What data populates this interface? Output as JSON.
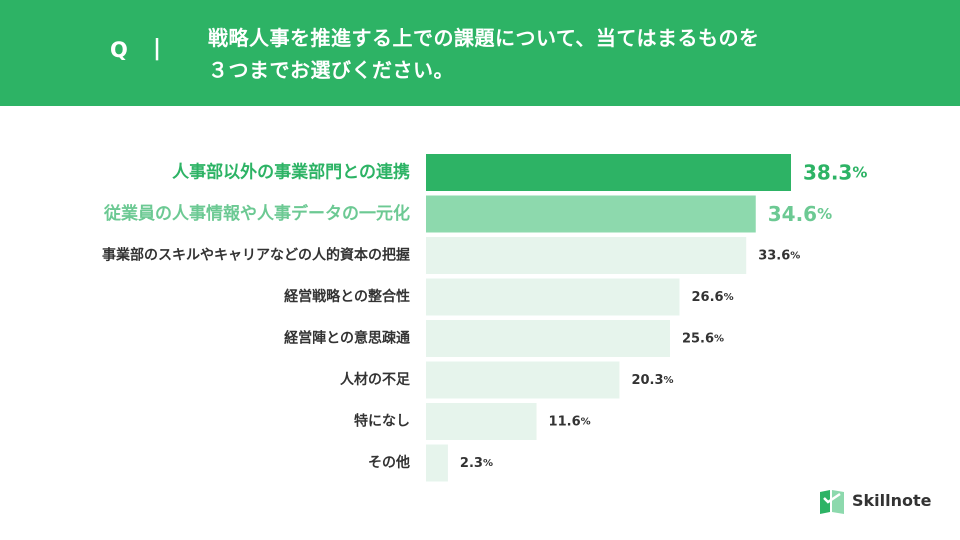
{
  "question": {
    "marker": "Q",
    "separator": "|",
    "line1": "戦略人事を推進する上での課題について、当てはまるものを",
    "line2": "３つまでお選びください。"
  },
  "chart_data": {
    "type": "bar",
    "orientation": "horizontal",
    "categories": [
      "人事部以外の事業部門との連携",
      "従業員の人事情報や人事データの一元化",
      "事業部のスキルやキャリアなどの人的資本の把握",
      "経営戦略との整合性",
      "経営陣との意思疎通",
      "人材の不足",
      "特になし",
      "その他"
    ],
    "values": [
      38.3,
      34.6,
      33.6,
      26.6,
      25.6,
      20.3,
      11.6,
      2.3
    ],
    "value_labels": [
      "38.3",
      "34.6",
      "33.6",
      "26.6",
      "25.6",
      "20.3",
      "11.6",
      "2.3"
    ],
    "unit": "%",
    "title": "",
    "xlabel": "",
    "ylabel": "",
    "xlim": [
      0,
      40
    ],
    "grid": false,
    "legend": "none",
    "colors": {
      "top1": "#2db365",
      "top2": "#8dd9ad",
      "other": "#e6f4ec",
      "highlight_label_1": "#2db365",
      "highlight_label_2": "#6cc993",
      "label": "#333333"
    }
  },
  "logo": {
    "text": "Skillnote",
    "icon": "skillnote-logo-icon",
    "color": "#2db365"
  }
}
